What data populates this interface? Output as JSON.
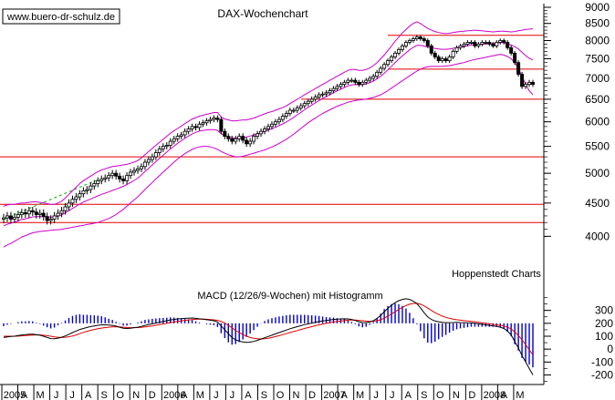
{
  "chart_data": [
    {
      "type": "candlestick",
      "title": "DAX-Wochenchart",
      "annotation": "Hoppenstedt Charts",
      "watermark": "www.buero-dr-schulz.de",
      "ylim": [
        3600,
        9000
      ],
      "y_ticks": [
        4000,
        4500,
        5000,
        5500,
        6000,
        6500,
        7000,
        7500,
        8000,
        8500,
        9000
      ],
      "y_tick_labels": [
        "4000",
        "4500",
        "5000",
        "5500",
        "6000",
        "6500",
        "7000",
        "7500",
        "8000",
        "8500",
        "9000"
      ],
      "x_labels": [
        "2005",
        "A",
        "M",
        "J",
        "J",
        "A",
        "S",
        "O",
        "N",
        "D",
        "2006",
        "A",
        "M",
        "J",
        "J",
        "A",
        "S",
        "O",
        "N",
        "D",
        "2007",
        "A",
        "M",
        "J",
        "J",
        "A",
        "S",
        "O",
        "N",
        "D",
        "2008",
        "A",
        "M"
      ],
      "horizontal_lines": [
        8150,
        7230,
        6500,
        5300,
        4480,
        4200
      ],
      "trendline": {
        "from": [
          0,
          4250
        ],
        "to": [
          112,
          4900
        ]
      },
      "close": [
        4270,
        4300,
        4250,
        4280,
        4320,
        4350,
        4330,
        4380,
        4360,
        4320,
        4340,
        4290,
        4230,
        4250,
        4300,
        4340,
        4380,
        4440,
        4500,
        4560,
        4600,
        4650,
        4700,
        4720,
        4780,
        4820,
        4870,
        4900,
        4920,
        4960,
        5000,
        4950,
        4900,
        4870,
        4960,
        5020,
        5050,
        5080,
        5120,
        5200,
        5250,
        5300,
        5380,
        5450,
        5500,
        5520,
        5600,
        5650,
        5700,
        5730,
        5800,
        5850,
        5900,
        5880,
        5950,
        5980,
        6020,
        6050,
        6080,
        6050,
        5800,
        5700,
        5650,
        5600,
        5650,
        5700,
        5620,
        5550,
        5600,
        5700,
        5750,
        5800,
        5850,
        5900,
        5950,
        6000,
        6050,
        6120,
        6180,
        6250,
        6250,
        6300,
        6350,
        6400,
        6450,
        6500,
        6550,
        6600,
        6620,
        6650,
        6700,
        6750,
        6800,
        6850,
        6900,
        6950,
        6950,
        6900,
        6850,
        6900,
        6950,
        7000,
        7050,
        7150,
        7250,
        7350,
        7450,
        7550,
        7650,
        7750,
        7850,
        7950,
        8000,
        8050,
        8100,
        8050,
        8000,
        7850,
        7650,
        7550,
        7450,
        7500,
        7450,
        7550,
        7700,
        7800,
        7850,
        7900,
        7950,
        7950,
        7850,
        7900,
        7950,
        7950,
        7900,
        7850,
        7950,
        8000,
        7950,
        7800,
        7650,
        7400,
        7100,
        6800,
        6850,
        6900,
        6850
      ],
      "upper_band": [
        4450,
        4470,
        4480,
        4480,
        4490,
        4500,
        4500,
        4510,
        4520,
        4520,
        4510,
        4500,
        4490,
        4480,
        4480,
        4500,
        4530,
        4580,
        4640,
        4700,
        4760,
        4820,
        4870,
        4910,
        4950,
        4990,
        5030,
        5060,
        5080,
        5100,
        5120,
        5130,
        5140,
        5150,
        5160,
        5180,
        5200,
        5230,
        5280,
        5340,
        5400,
        5460,
        5520,
        5580,
        5640,
        5700,
        5760,
        5810,
        5860,
        5910,
        5960,
        6010,
        6060,
        6090,
        6120,
        6140,
        6160,
        6180,
        6200,
        6200,
        6100,
        6060,
        6040,
        6020,
        6020,
        6030,
        6040,
        6040,
        6060,
        6080,
        6110,
        6140,
        6170,
        6200,
        6220,
        6250,
        6280,
        6310,
        6350,
        6400,
        6450,
        6500,
        6550,
        6600,
        6650,
        6700,
        6750,
        6800,
        6850,
        6900,
        6950,
        7000,
        7050,
        7100,
        7150,
        7200,
        7220,
        7220,
        7200,
        7200,
        7220,
        7260,
        7320,
        7400,
        7500,
        7600,
        7720,
        7850,
        7980,
        8100,
        8220,
        8320,
        8420,
        8500,
        8550,
        8500,
        8420,
        8350,
        8300,
        8260,
        8230,
        8210,
        8200,
        8210,
        8230,
        8250,
        8260,
        8270,
        8280,
        8290,
        8300,
        8290,
        8280,
        8270,
        8260,
        8250,
        8260,
        8270,
        8270,
        8260,
        8250,
        8260,
        8280,
        8300,
        8320,
        8330,
        8340
      ],
      "lower_band": [
        3850,
        3880,
        3900,
        3930,
        3960,
        3990,
        4010,
        4030,
        4050,
        4060,
        4070,
        4075,
        4080,
        4085,
        4090,
        4095,
        4100,
        4110,
        4120,
        4130,
        4140,
        4150,
        4160,
        4170,
        4180,
        4190,
        4200,
        4220,
        4240,
        4260,
        4290,
        4320,
        4360,
        4400,
        4450,
        4500,
        4550,
        4600,
        4660,
        4720,
        4780,
        4840,
        4900,
        4960,
        5020,
        5080,
        5140,
        5200,
        5260,
        5310,
        5360,
        5400,
        5440,
        5470,
        5490,
        5500,
        5500,
        5490,
        5470,
        5440,
        5400,
        5370,
        5340,
        5320,
        5300,
        5300,
        5310,
        5330,
        5350,
        5370,
        5390,
        5410,
        5430,
        5460,
        5490,
        5520,
        5560,
        5600,
        5640,
        5690,
        5740,
        5800,
        5860,
        5920,
        5980,
        6030,
        6080,
        6130,
        6180,
        6220,
        6260,
        6300,
        6340,
        6370,
        6400,
        6430,
        6450,
        6470,
        6480,
        6490,
        6500,
        6520,
        6540,
        6570,
        6600,
        6650,
        6700,
        6760,
        6820,
        6880,
        6940,
        7000,
        7060,
        7120,
        7180,
        7230,
        7270,
        7290,
        7300,
        7300,
        7300,
        7300,
        7310,
        7320,
        7340,
        7360,
        7380,
        7400,
        7430,
        7460,
        7480,
        7500,
        7520,
        7540,
        7560,
        7580,
        7600,
        7620,
        7600,
        7560,
        7500,
        7400,
        7250,
        7050,
        6850,
        6700,
        6600
      ],
      "mid_line": [
        4150,
        4175,
        4190,
        4205,
        4225,
        4245,
        4255,
        4270,
        4285,
        4290,
        4290,
        4290,
        4285,
        4283,
        4285,
        4298,
        4315,
        4345,
        4380,
        4415,
        4450,
        4485,
        4515,
        4540,
        4565,
        4590,
        4615,
        4640,
        4660,
        4680,
        4705,
        4725,
        4750,
        4775,
        4805,
        4840,
        4875,
        4915,
        4970,
        5030,
        5090,
        5150,
        5210,
        5270,
        5330,
        5390,
        5450,
        5505,
        5560,
        5610,
        5660,
        5705,
        5750,
        5780,
        5805,
        5820,
        5830,
        5835,
        5835,
        5820,
        5750,
        5715,
        5690,
        5670,
        5660,
        5665,
        5675,
        5685,
        5705,
        5725,
        5750,
        5775,
        5800,
        5830,
        5855,
        5885,
        5920,
        5955,
        5995,
        6045,
        6095,
        6150,
        6205,
        6260,
        6315,
        6365,
        6415,
        6465,
        6515,
        6560,
        6605,
        6650,
        6695,
        6735,
        6775,
        6815,
        6835,
        6845,
        6840,
        6845,
        6860,
        6890,
        6930,
        6985,
        7050,
        7125,
        7210,
        7305,
        7400,
        7490,
        7580,
        7660,
        7740,
        7810,
        7865,
        7865,
        7845,
        7820,
        7800,
        7780,
        7765,
        7755,
        7755,
        7765,
        7785,
        7805,
        7820,
        7835,
        7855,
        7875,
        7890,
        7895,
        7900,
        7905,
        7910,
        7915,
        7930,
        7945,
        7935,
        7910,
        7875,
        7830,
        7765,
        7675,
        7585,
        7515,
        7470
      ],
      "macd_ylim": [
        -260,
        460
      ],
      "macd_y_ticks": [
        -200,
        -100,
        0,
        100,
        200,
        300
      ],
      "macd_y_tick_labels": [
        "-200",
        "-100",
        "0",
        "100",
        "200",
        "300"
      ],
      "macd_label": "MACD (12/26/9-Wochen) mit Histogramm",
      "macd": [
        90,
        95,
        98,
        100,
        105,
        110,
        112,
        115,
        116,
        112,
        108,
        100,
        90,
        82,
        80,
        85,
        92,
        102,
        115,
        128,
        140,
        152,
        160,
        168,
        175,
        180,
        185,
        188,
        188,
        186,
        184,
        178,
        170,
        162,
        160,
        162,
        166,
        170,
        176,
        184,
        190,
        196,
        202,
        208,
        214,
        220,
        226,
        230,
        234,
        236,
        238,
        240,
        241,
        238,
        235,
        232,
        228,
        224,
        220,
        210,
        180,
        150,
        118,
        90,
        72,
        62,
        56,
        52,
        54,
        60,
        68,
        78,
        88,
        98,
        108,
        118,
        128,
        138,
        148,
        158,
        166,
        174,
        182,
        190,
        196,
        202,
        208,
        214,
        218,
        222,
        226,
        230,
        232,
        234,
        235,
        234,
        230,
        222,
        212,
        206,
        205,
        210,
        220,
        238,
        262,
        290,
        316,
        340,
        360,
        375,
        385,
        390,
        385,
        372,
        352,
        320,
        282,
        250,
        230,
        218,
        212,
        208,
        205,
        205,
        206,
        207,
        206,
        205,
        204,
        203,
        200,
        196,
        192,
        188,
        184,
        180,
        176,
        170,
        160,
        140,
        110,
        60,
        10,
        -50,
        -100,
        -150,
        -200
      ],
      "signal": [
        100,
        100,
        100,
        100,
        101,
        103,
        105,
        107,
        109,
        110,
        110,
        108,
        104,
        100,
        95,
        92,
        90,
        92,
        96,
        102,
        110,
        120,
        130,
        138,
        146,
        152,
        158,
        163,
        167,
        170,
        172,
        173,
        172,
        170,
        168,
        166,
        166,
        167,
        169,
        172,
        176,
        180,
        185,
        190,
        195,
        200,
        205,
        210,
        215,
        219,
        223,
        226,
        229,
        231,
        232,
        232,
        231,
        229,
        227,
        223,
        215,
        202,
        185,
        165,
        145,
        128,
        113,
        100,
        90,
        84,
        80,
        79,
        80,
        84,
        90,
        97,
        104,
        112,
        120,
        128,
        136,
        144,
        152,
        160,
        167,
        174,
        181,
        188,
        194,
        200,
        205,
        210,
        214,
        218,
        221,
        224,
        225,
        225,
        223,
        220,
        217,
        215,
        216,
        220,
        228,
        240,
        255,
        272,
        290,
        308,
        324,
        338,
        348,
        354,
        355,
        348,
        335,
        318,
        300,
        283,
        268,
        256,
        246,
        238,
        232,
        228,
        224,
        221,
        218,
        215,
        212,
        208,
        204,
        200,
        196,
        192,
        188,
        184,
        179,
        170,
        156,
        134,
        106,
        72,
        35,
        -5,
        -45
      ]
    }
  ]
}
